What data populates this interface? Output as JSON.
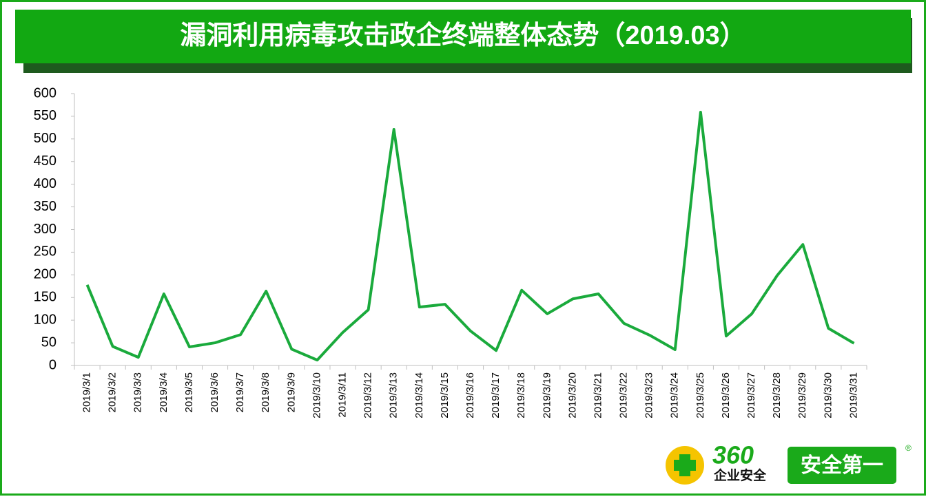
{
  "chart_data": {
    "type": "line",
    "title": "漏洞利用病毒攻击政企终端整体态势（2019.03）",
    "categories": [
      "2019/3/1",
      "2019/3/2",
      "2019/3/3",
      "2019/3/4",
      "2019/3/5",
      "2019/3/6",
      "2019/3/7",
      "2019/3/8",
      "2019/3/9",
      "2019/3/10",
      "2019/3/11",
      "2019/3/12",
      "2019/3/13",
      "2019/3/14",
      "2019/3/15",
      "2019/3/16",
      "2019/3/17",
      "2019/3/18",
      "2019/3/19",
      "2019/3/20",
      "2019/3/21",
      "2019/3/22",
      "2019/3/23",
      "2019/3/24",
      "2019/3/25",
      "2019/3/26",
      "2019/3/27",
      "2019/3/28",
      "2019/3/29",
      "2019/3/30",
      "2019/3/31"
    ],
    "values": [
      178,
      42,
      18,
      158,
      41,
      50,
      68,
      164,
      36,
      12,
      73,
      123,
      521,
      129,
      135,
      76,
      33,
      166,
      114,
      147,
      158,
      93,
      67,
      35,
      559,
      65,
      114,
      199,
      267,
      82,
      49
    ],
    "color": "#1aaa3c",
    "ylim": [
      0,
      600
    ],
    "yticks": [
      0,
      50,
      100,
      150,
      200,
      250,
      300,
      350,
      400,
      450,
      500,
      550,
      600
    ]
  },
  "logo": {
    "brand": "360",
    "sub": "企业安全",
    "slogan": "安全第一",
    "mark": "®"
  }
}
